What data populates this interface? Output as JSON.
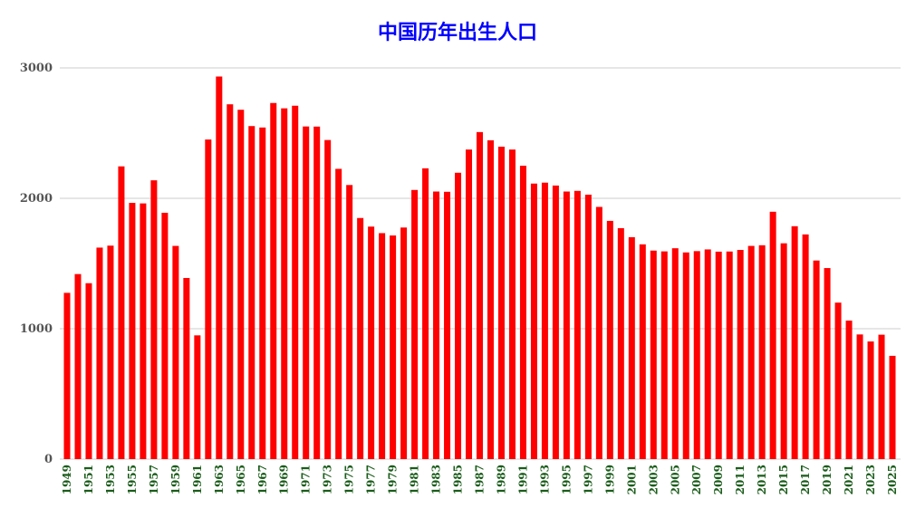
{
  "chart_data": {
    "type": "bar",
    "title": "中国历年出生人口",
    "xlabel": "",
    "ylabel": "",
    "ylim": [
      0,
      3000
    ],
    "yticks": [
      0,
      1000,
      2000,
      3000
    ],
    "grid": true,
    "categories": [
      "1949",
      "1950",
      "1951",
      "1952",
      "1953",
      "1954",
      "1955",
      "1956",
      "1957",
      "1958",
      "1959",
      "1960",
      "1961",
      "1962",
      "1963",
      "1964",
      "1965",
      "1966",
      "1967",
      "1968",
      "1969",
      "1970",
      "1971",
      "1972",
      "1973",
      "1974",
      "1975",
      "1976",
      "1977",
      "1978",
      "1979",
      "1980",
      "1981",
      "1982",
      "1983",
      "1984",
      "1985",
      "1986",
      "1987",
      "1988",
      "1989",
      "1990",
      "1991",
      "1992",
      "1993",
      "1994",
      "1995",
      "1996",
      "1997",
      "1998",
      "1999",
      "2000",
      "2001",
      "2002",
      "2003",
      "2004",
      "2005",
      "2006",
      "2007",
      "2008",
      "2009",
      "2010",
      "2011",
      "2012",
      "2013",
      "2014",
      "2015",
      "2016",
      "2017",
      "2018",
      "2019",
      "2020",
      "2021",
      "2022",
      "2023",
      "2024",
      "2025"
    ],
    "xticks_shown": [
      "1949",
      "1951",
      "1953",
      "1955",
      "1957",
      "1959",
      "1961",
      "1963",
      "1965",
      "1967",
      "1969",
      "1971",
      "1973",
      "1975",
      "1977",
      "1979",
      "1981",
      "1983",
      "1985",
      "1987",
      "1989",
      "1991",
      "1993",
      "1995",
      "1997",
      "1999",
      "2001",
      "2003",
      "2005",
      "2007",
      "2009",
      "2011",
      "2013",
      "2015",
      "2017",
      "2019",
      "2021",
      "2023",
      "2025"
    ],
    "series": [
      {
        "values": [
          1275,
          1419,
          1349,
          1622,
          1637,
          2245,
          1965,
          1961,
          2138,
          1889,
          1635,
          1389,
          949,
          2451,
          2934,
          2721,
          2679,
          2554,
          2543,
          2731,
          2690,
          2710,
          2551,
          2550,
          2447,
          2226,
          2102,
          1849,
          1783,
          1733,
          1715,
          1776,
          2064,
          2230,
          2052,
          2050,
          2196,
          2374,
          2508,
          2445,
          2396,
          2374,
          2250,
          2113,
          2120,
          2098,
          2052,
          2057,
          2028,
          1934,
          1827,
          1771,
          1702,
          1647,
          1599,
          1593,
          1617,
          1585,
          1595,
          1608,
          1591,
          1592,
          1604,
          1635,
          1640,
          1897,
          1655,
          1786,
          1723,
          1523,
          1465,
          1200,
          1062,
          956,
          902,
          954,
          792
        ]
      }
    ],
    "colors": {
      "bar": "#ff0000",
      "title": "#0000ff",
      "xtick": "#1a5c1a",
      "ytick": "#555555",
      "grid": "#cccccc"
    }
  }
}
